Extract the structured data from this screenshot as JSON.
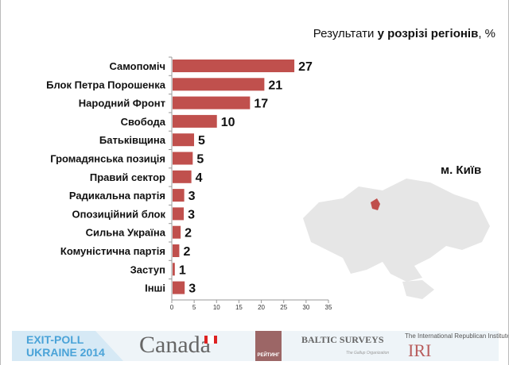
{
  "header": {
    "title_prefix": "Результати ",
    "title_bold": "у розрізі регіонів",
    "title_suffix": ", %"
  },
  "region_label": "м. Київ",
  "footer": {
    "exit_poll_line1": "EXIT-POLL",
    "exit_poll_line2": "UKRAINE 2014",
    "canada": "Canada",
    "rating": "РЕЙТИНГ",
    "baltic": "BALTIC SURVEYS",
    "gallup": "The Gallup Organization",
    "iri_line1": "The International Republican Institute",
    "iri_line2": "IRI"
  },
  "chart_data": {
    "type": "bar",
    "orientation": "horizontal",
    "title": "Результати у розрізі регіонів, %",
    "categories": [
      "Самопоміч",
      "Блок Петра Порошенка",
      "Народний Фронт",
      "Свобода",
      "Батьківщина",
      "Громадянська позиція",
      "Правий сектор",
      "Радикальна партія",
      "Опозиційний блок",
      "Сильна Україна",
      "Комуністична партія",
      "Заступ",
      "Інші"
    ],
    "values": [
      27.2,
      20.5,
      17.3,
      9.9,
      4.8,
      4.5,
      4.2,
      2.6,
      2.5,
      1.8,
      1.5,
      0.5,
      2.7
    ],
    "data_labels": [
      "27",
      "21",
      "17",
      "10",
      "5",
      "5",
      "4",
      "3",
      "3",
      "2",
      "2",
      "1",
      "3"
    ],
    "xlim": [
      0,
      35
    ],
    "xticks": [
      "0",
      "5",
      "10",
      "15",
      "20",
      "25",
      "30",
      "35"
    ],
    "bar_color": "#c0504d",
    "grid": false
  }
}
